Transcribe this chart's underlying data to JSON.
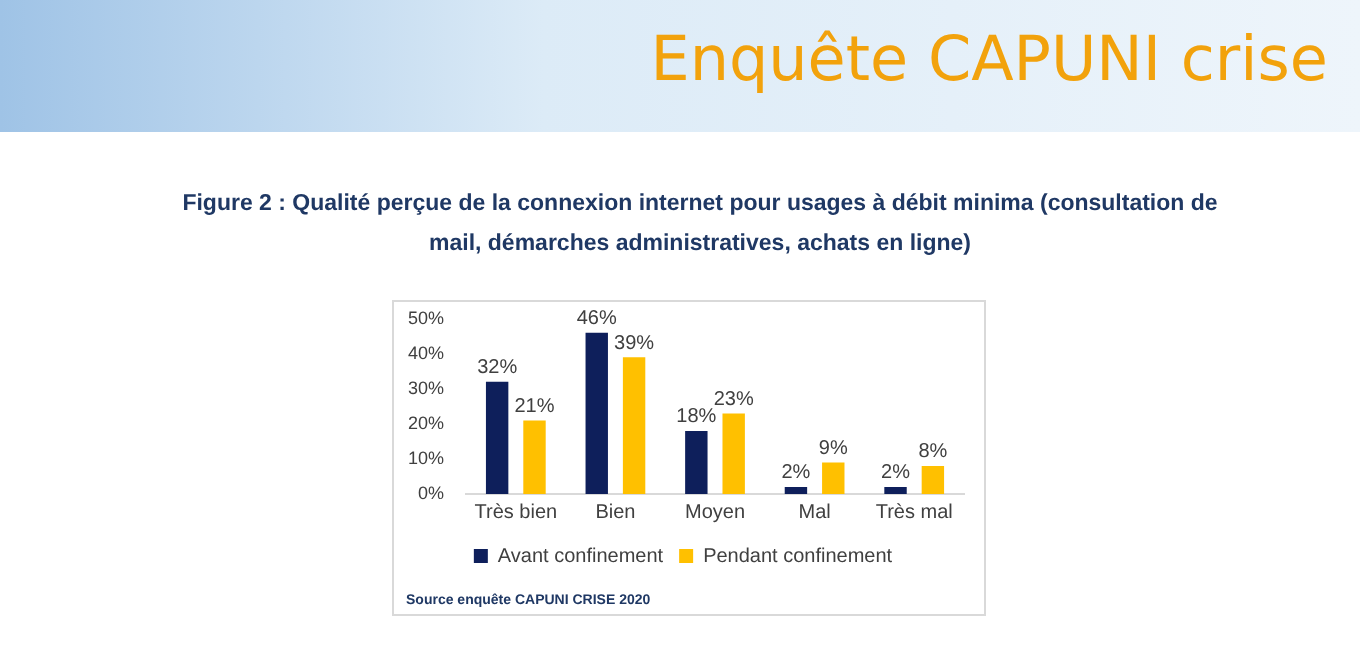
{
  "chart_data": {
    "type": "bar",
    "title": "Enquête CAPUNI crise",
    "subtitle": "Figure 2 : Qualité perçue de la connexion internet pour usages à débit minima (consultation de mail, démarches administratives, achats en ligne)",
    "categories": [
      "Très bien",
      "Bien",
      "Moyen",
      "Mal",
      "Très mal"
    ],
    "series": [
      {
        "name": "Avant confinement",
        "color": "#0e1f5b",
        "values": [
          32,
          46,
          18,
          2,
          2
        ],
        "value_labels": [
          "32%",
          "46%",
          "18%",
          "2%",
          "2%"
        ]
      },
      {
        "name": "Pendant confinement",
        "color": "#ffc000",
        "values": [
          21,
          39,
          23,
          9,
          8
        ],
        "value_labels": [
          "21%",
          "39%",
          "23%",
          "9%",
          "8%"
        ]
      }
    ],
    "ylim": [
      0,
      50
    ],
    "yticks": [
      {
        "value": 0,
        "label": "0%"
      },
      {
        "value": 10,
        "label": "10%"
      },
      {
        "value": 20,
        "label": "20%"
      },
      {
        "value": 30,
        "label": "30%"
      },
      {
        "value": 40,
        "label": "40%"
      },
      {
        "value": 50,
        "label": "50%"
      }
    ],
    "grid": false,
    "legend": "bottom",
    "annotations": [
      "Source enquête CAPUNI CRISE 2020"
    ]
  }
}
